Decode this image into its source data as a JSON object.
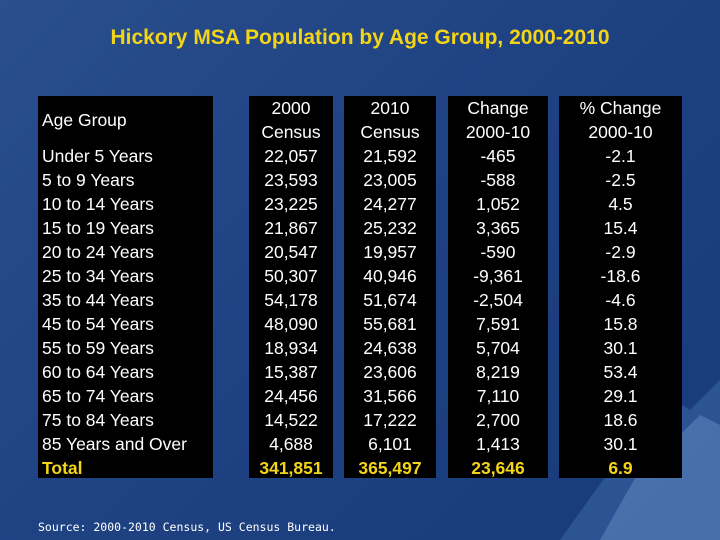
{
  "title": "Hickory MSA Population by Age Group, 2000-2010",
  "colors": {
    "title": "#f3d417",
    "background": "#1f4283",
    "table_bg": "#000000",
    "text": "#ffffff",
    "total": "#f3d417"
  },
  "source": "Source: 2000-2010 Census, US Census Bureau.",
  "chart_data": {
    "type": "table",
    "title": "Hickory MSA Population by Age Group, 2000-2010",
    "columns": [
      {
        "line1": "Age Group",
        "line2": ""
      },
      {
        "line1": "2000",
        "line2": "Census"
      },
      {
        "line1": "2010",
        "line2": "Census"
      },
      {
        "line1": "Change",
        "line2": "2000-10"
      },
      {
        "line1": "% Change",
        "line2": "2000-10"
      }
    ],
    "rows": [
      [
        "Under 5 Years",
        "22,057",
        "21,592",
        "-465",
        "-2.1"
      ],
      [
        "5 to 9 Years",
        "23,593",
        "23,005",
        "-588",
        "-2.5"
      ],
      [
        "10 to 14 Years",
        "23,225",
        "24,277",
        "1,052",
        "4.5"
      ],
      [
        "15 to 19 Years",
        "21,867",
        "25,232",
        "3,365",
        "15.4"
      ],
      [
        "20 to 24 Years",
        "20,547",
        "19,957",
        "-590",
        "-2.9"
      ],
      [
        "25 to 34 Years",
        "50,307",
        "40,946",
        "-9,361",
        "-18.6"
      ],
      [
        "35 to 44 Years",
        "54,178",
        "51,674",
        "-2,504",
        "-4.6"
      ],
      [
        "45 to 54 Years",
        "48,090",
        "55,681",
        "7,591",
        "15.8"
      ],
      [
        "55 to 59 Years",
        "18,934",
        "24,638",
        "5,704",
        "30.1"
      ],
      [
        "60 to 64 Years",
        "15,387",
        "23,606",
        "8,219",
        "53.4"
      ],
      [
        "65 to 74 Years",
        "24,456",
        "31,566",
        "7,110",
        "29.1"
      ],
      [
        "75 to 84 Years",
        "14,522",
        "17,222",
        "2,700",
        "18.6"
      ],
      [
        "85 Years and Over",
        "4,688",
        "6,101",
        "1,413",
        "30.1"
      ]
    ],
    "total": [
      "Total",
      "341,851",
      "365,497",
      "23,646",
      "6.9"
    ]
  }
}
